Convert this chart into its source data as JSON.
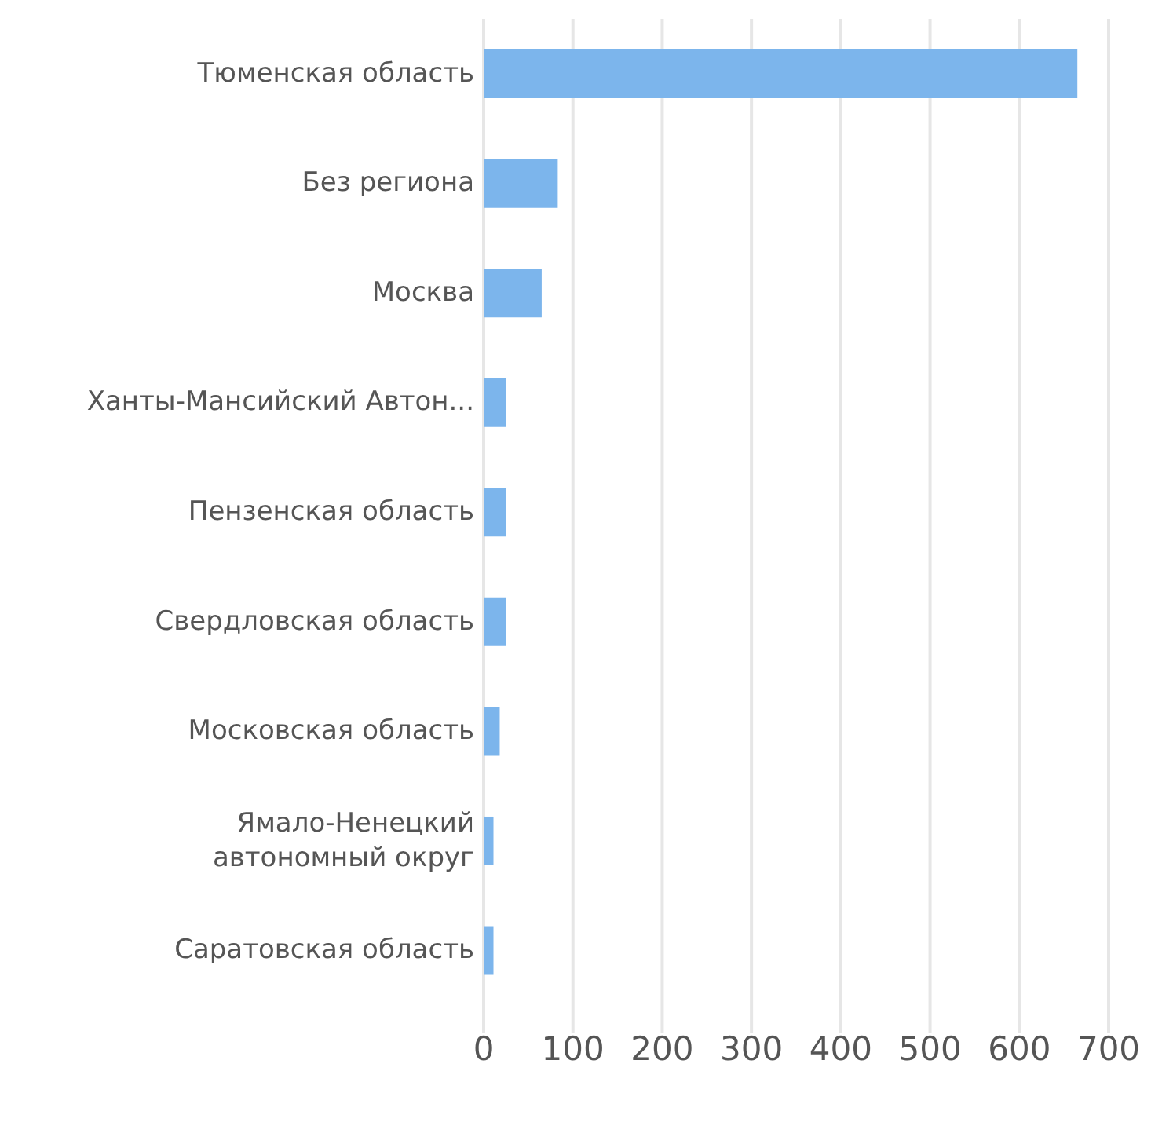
{
  "chart_data": {
    "type": "bar",
    "orientation": "horizontal",
    "categories": [
      "Тюменская область",
      "Без региона",
      "Москва",
      "Ханты-Мансийский Автон...",
      "Пензенская область",
      "Свердловская область",
      "Московская область",
      "Ямало-Ненецкий автономный округ",
      "Саратовская область"
    ],
    "values": [
      665,
      83,
      65,
      25,
      25,
      25,
      18,
      11,
      11
    ],
    "color": "#7cb5ec",
    "xlim": [
      0,
      700
    ],
    "xticks": [
      0,
      100,
      200,
      300,
      400,
      500,
      600,
      700
    ],
    "grid": "x"
  }
}
